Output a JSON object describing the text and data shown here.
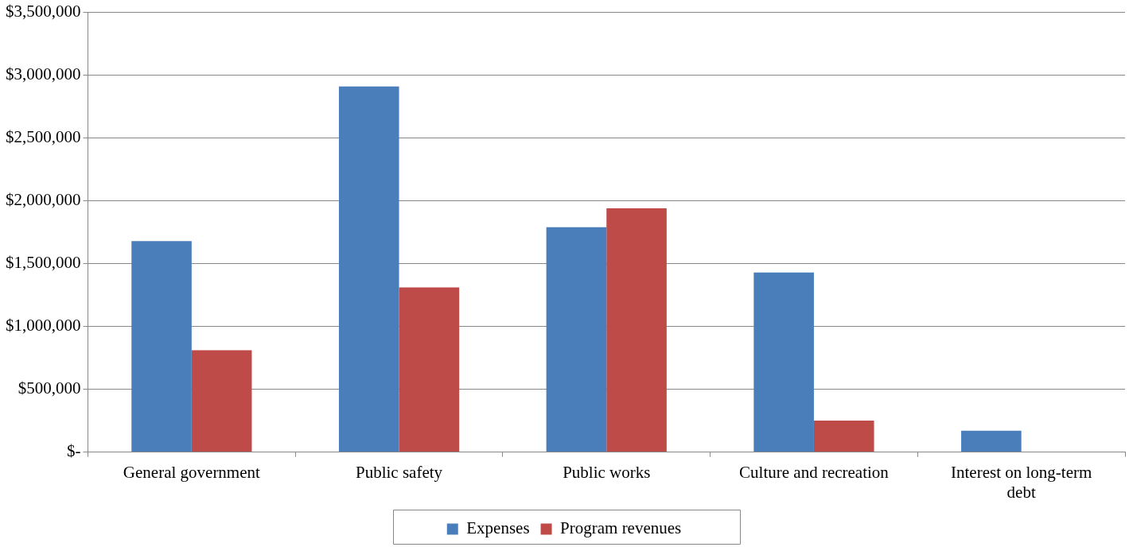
{
  "chart_data": {
    "type": "bar",
    "categories": [
      "General government",
      "Public safety",
      "Public works",
      "Culture and recreation",
      "Interest on long-term debt"
    ],
    "series": [
      {
        "name": "Expenses",
        "color": "#4a7ebb",
        "values": [
          1680000,
          2910000,
          1790000,
          1430000,
          170000
        ]
      },
      {
        "name": "Program revenues",
        "color": "#be4b48",
        "values": [
          810000,
          1310000,
          1940000,
          250000,
          0
        ]
      }
    ],
    "ylim": [
      0,
      3500000
    ],
    "yticks": [
      {
        "value": 0,
        "label": "$-"
      },
      {
        "value": 500000,
        "label": "$500,000"
      },
      {
        "value": 1000000,
        "label": "$1,000,000"
      },
      {
        "value": 1500000,
        "label": "$1,500,000"
      },
      {
        "value": 2000000,
        "label": "$2,000,000"
      },
      {
        "value": 2500000,
        "label": "$2,500,000"
      },
      {
        "value": 3000000,
        "label": "$3,000,000"
      },
      {
        "value": 3500000,
        "label": "$3,500,000"
      }
    ],
    "grid": "y",
    "legend": "bottom"
  }
}
